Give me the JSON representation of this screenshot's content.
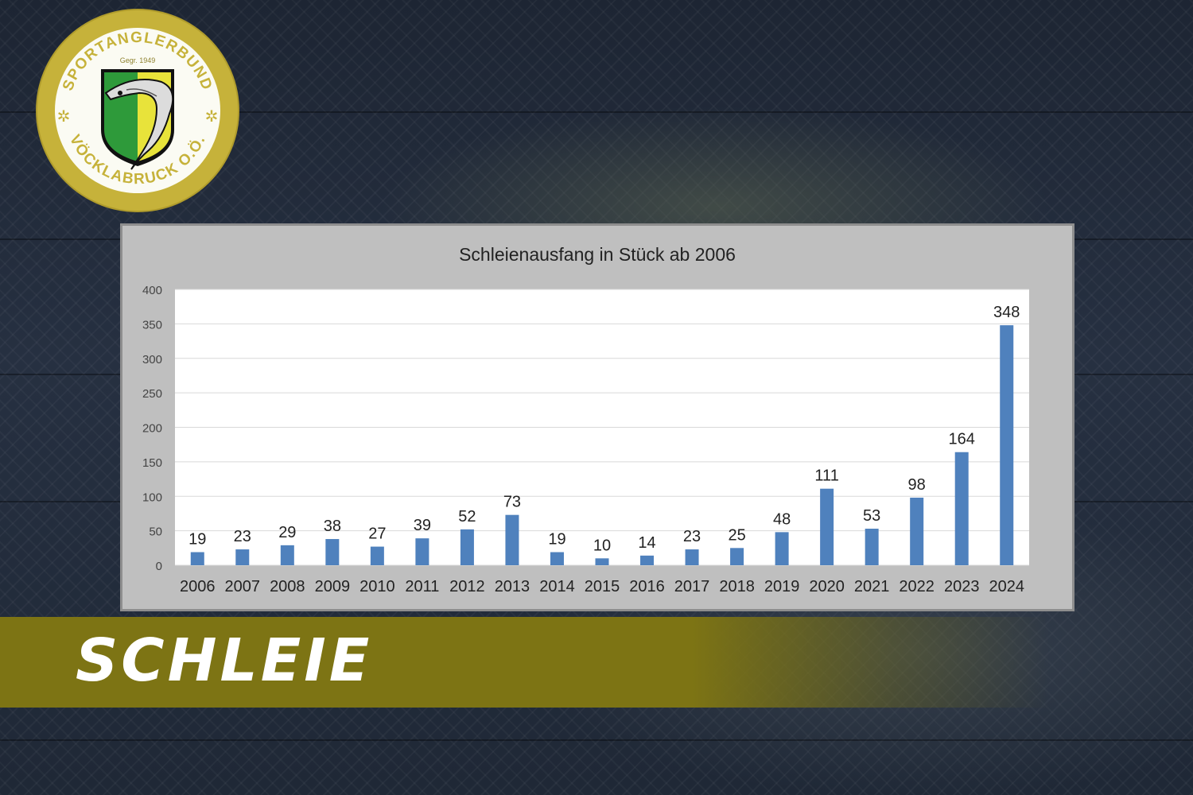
{
  "logo": {
    "top_text": "SPORTANGLERBUND",
    "bottom_text": "VÖCKLABRUCK O.Ö.",
    "founded": "Gegr. 1949",
    "colors": {
      "ring": "#c6b23a",
      "shield_green": "#2e9a3a",
      "shield_yellow": "#e8e33a"
    },
    "icon": "fish-on-shield-emblem"
  },
  "chart_data": {
    "type": "bar",
    "title": "Schleienausfang in Stück ab 2006",
    "categories": [
      "2006",
      "2007",
      "2008",
      "2009",
      "2010",
      "2011",
      "2012",
      "2013",
      "2014",
      "2015",
      "2016",
      "2017",
      "2018",
      "2019",
      "2020",
      "2021",
      "2022",
      "2023",
      "2024"
    ],
    "values": [
      19,
      23,
      29,
      38,
      27,
      39,
      52,
      73,
      19,
      10,
      14,
      23,
      25,
      48,
      111,
      53,
      98,
      164,
      348
    ],
    "ylim": [
      0,
      400
    ],
    "yticks": [
      0,
      50,
      100,
      150,
      200,
      250,
      300,
      350,
      400
    ],
    "grid": true,
    "data_labels": true,
    "bar_color": "#4f81bd"
  },
  "banner": {
    "title": "SCHLEIE"
  }
}
